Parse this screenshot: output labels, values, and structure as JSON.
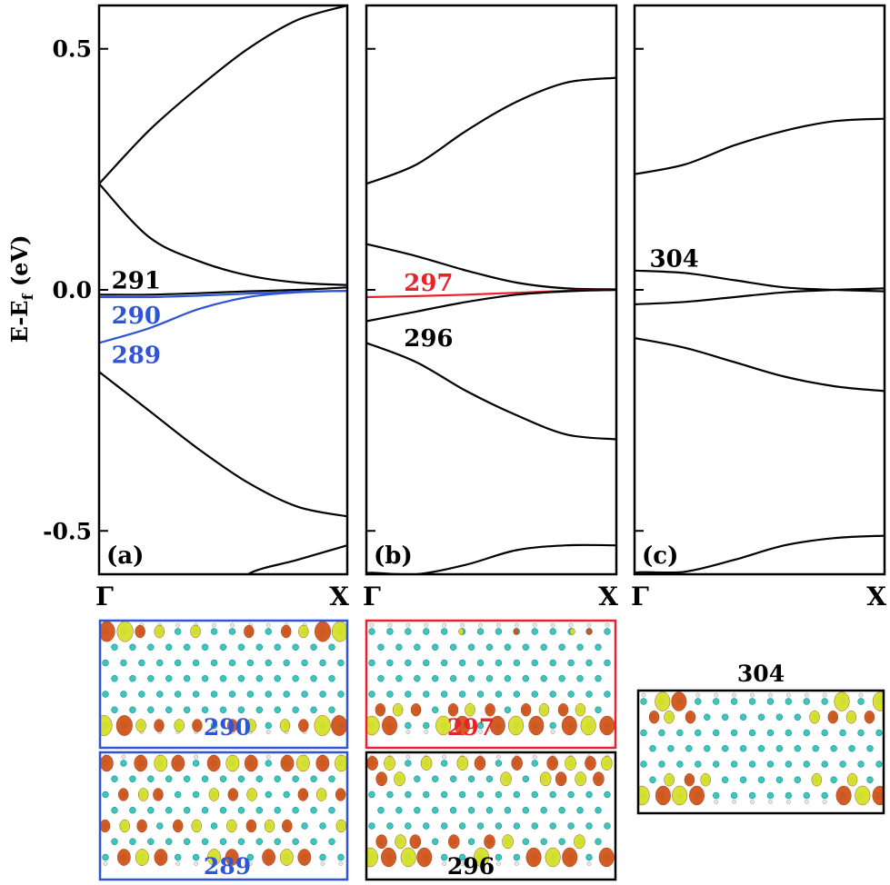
{
  "figure": {
    "y_axis_label": "E-E",
    "y_axis_label_sub": "f",
    "y_axis_label_unit": " (eV)",
    "x_tick_start": "Γ",
    "x_tick_end": "X"
  },
  "colors": {
    "black": "#000000",
    "blue": "#2f55d4",
    "red": "#e8212a",
    "carbon": "#3cc6c0",
    "hydrogen": "#e8e8e8",
    "lobe_orange": "#d2541a",
    "lobe_yellow": "#d6e12a"
  },
  "chart_data": [
    {
      "type": "line",
      "panel_label": "(a)",
      "x": [
        0,
        0.2,
        0.4,
        0.6,
        0.8,
        1.0
      ],
      "ylim": [
        -0.59,
        0.59
      ],
      "yticks": [
        0.5,
        0.0,
        -0.5
      ],
      "yticklabels": [
        "0.5",
        "0.0",
        "-0.5"
      ],
      "series": [
        {
          "color": "black",
          "values": [
            0.22,
            0.33,
            0.42,
            0.5,
            0.56,
            0.59
          ]
        },
        {
          "color": "black",
          "values": [
            0.22,
            0.11,
            0.06,
            0.03,
            0.015,
            0.01
          ]
        },
        {
          "color": "black",
          "values": [
            -0.01,
            -0.01,
            -0.007,
            -0.003,
            0.0,
            0.005
          ]
        },
        {
          "color": "blue",
          "values": [
            -0.015,
            -0.015,
            -0.012,
            -0.008,
            -0.004,
            -0.002
          ]
        },
        {
          "color": "blue",
          "values": [
            -0.11,
            -0.08,
            -0.04,
            -0.015,
            -0.005,
            -0.002
          ]
        },
        {
          "color": "black",
          "values": [
            -0.17,
            -0.25,
            -0.33,
            -0.4,
            -0.45,
            -0.47
          ]
        },
        {
          "color": "black",
          "values": [
            null,
            null,
            null,
            -0.59,
            -0.56,
            -0.53
          ],
          "x_start": 0.55
        }
      ],
      "annotations": [
        {
          "text": "291",
          "x": 0.05,
          "y": 0.02,
          "color": "black"
        },
        {
          "text": "290",
          "x": 0.05,
          "y": -0.053,
          "color": "blue"
        },
        {
          "text": "289",
          "x": 0.05,
          "y": -0.135,
          "color": "blue"
        }
      ]
    },
    {
      "type": "line",
      "panel_label": "(b)",
      "x": [
        0,
        0.2,
        0.4,
        0.6,
        0.8,
        1.0
      ],
      "ylim": [
        -0.59,
        0.59
      ],
      "yticks": [
        0.5,
        0.0,
        -0.5
      ],
      "series": [
        {
          "color": "black",
          "values": [
            0.22,
            0.26,
            0.33,
            0.39,
            0.43,
            0.44
          ]
        },
        {
          "color": "black",
          "values": [
            0.095,
            0.07,
            0.04,
            0.015,
            0.003,
            0.001
          ]
        },
        {
          "color": "red",
          "values": [
            -0.015,
            -0.013,
            -0.01,
            -0.006,
            -0.002,
            0.0
          ]
        },
        {
          "color": "black",
          "values": [
            -0.065,
            -0.045,
            -0.025,
            -0.01,
            -0.003,
            0.0
          ]
        },
        {
          "color": "black",
          "values": [
            -0.11,
            -0.15,
            -0.21,
            -0.26,
            -0.3,
            -0.31
          ]
        },
        {
          "color": "black",
          "values": [
            -0.59,
            -0.59,
            -0.57,
            -0.54,
            -0.53,
            -0.53
          ],
          "x_start": 0.3
        }
      ],
      "annotations": [
        {
          "text": "297",
          "x": 0.15,
          "y": 0.015,
          "color": "red"
        },
        {
          "text": "296",
          "x": 0.15,
          "y": -0.1,
          "color": "black"
        }
      ]
    },
    {
      "type": "line",
      "panel_label": "(c)",
      "x": [
        0,
        0.2,
        0.4,
        0.6,
        0.8,
        1.0
      ],
      "ylim": [
        -0.59,
        0.59
      ],
      "yticks": [
        0.5,
        0.0,
        -0.5
      ],
      "series": [
        {
          "color": "black",
          "values": [
            0.24,
            0.26,
            0.3,
            0.33,
            0.35,
            0.355
          ]
        },
        {
          "color": "black",
          "values": [
            0.04,
            0.035,
            0.02,
            0.005,
            0.0,
            -0.003
          ]
        },
        {
          "color": "black",
          "values": [
            -0.03,
            -0.025,
            -0.015,
            -0.005,
            0.0,
            0.003
          ]
        },
        {
          "color": "black",
          "values": [
            -0.1,
            -0.12,
            -0.15,
            -0.18,
            -0.2,
            -0.21
          ]
        },
        {
          "color": "black",
          "values": [
            -0.59,
            -0.585,
            -0.56,
            -0.53,
            -0.515,
            -0.51
          ],
          "x_start": 0.3
        }
      ],
      "annotations": [
        {
          "text": "304",
          "x": 0.06,
          "y": 0.065,
          "color": "black"
        }
      ]
    }
  ],
  "orbitals": [
    {
      "label": "290",
      "label_color": "blue",
      "border": "blue"
    },
    {
      "label": "289",
      "label_color": "blue",
      "border": "blue"
    },
    {
      "label": "297",
      "label_color": "red",
      "border": "red"
    },
    {
      "label": "296",
      "label_color": "black",
      "border": "black"
    },
    {
      "label": "304",
      "label_color": "black",
      "border": "black"
    }
  ]
}
